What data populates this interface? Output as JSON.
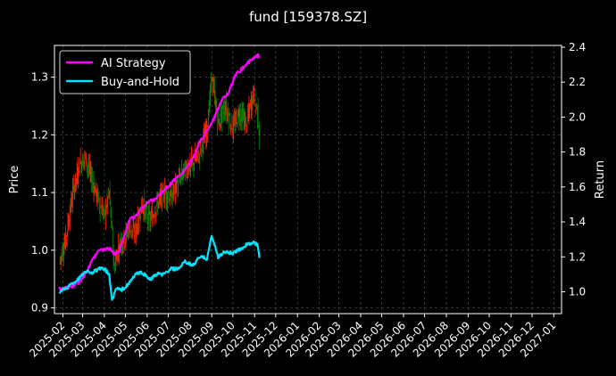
{
  "chart_data": {
    "type": "line",
    "title": "fund [159378.SZ]",
    "ylabel_left": "Price",
    "ylabel_right": "Return",
    "x_ticks": [
      "2025-02",
      "2025-03",
      "2025-04",
      "2025-05",
      "2025-06",
      "2025-07",
      "2025-08",
      "2025-09",
      "2025-10",
      "2025-11",
      "2025-12",
      "2026-01",
      "2026-02",
      "2026-03",
      "2026-04",
      "2026-05",
      "2026-06",
      "2026-07",
      "2026-08",
      "2026-09",
      "2026-10",
      "2026-11",
      "2026-12",
      "2027-01"
    ],
    "xlim": [
      "2025-01-20",
      "2027-01-12"
    ],
    "ylim_left": [
      0.89,
      1.355
    ],
    "ylim_right": [
      0.875,
      2.41
    ],
    "yticks_left": [
      "0.9",
      "1.0",
      "1.1",
      "1.2",
      "1.3"
    ],
    "yticks_right": [
      "1.0",
      "1.2",
      "1.4",
      "1.6",
      "1.8",
      "2.0",
      "2.2",
      "2.4"
    ],
    "grid": true,
    "legend_position": "top-left",
    "colors": {
      "ai_strategy": "#ff00ff",
      "buy_and_hold": "#00e5ff",
      "candle_up": "#ff2a00",
      "candle_down": "#008a00",
      "grid": "#555555",
      "background": "#000000",
      "text": "#ffffff"
    },
    "series": [
      {
        "name": "AI Strategy",
        "axis": "right",
        "dates": [
          "2025-01-27",
          "2025-02-05",
          "2025-02-15",
          "2025-02-25",
          "2025-03-05",
          "2025-03-15",
          "2025-03-25",
          "2025-04-01",
          "2025-04-08",
          "2025-04-15",
          "2025-04-22",
          "2025-04-29",
          "2025-05-06",
          "2025-05-15",
          "2025-05-25",
          "2025-06-05",
          "2025-06-15",
          "2025-06-25",
          "2025-07-05",
          "2025-07-15",
          "2025-07-25",
          "2025-08-05",
          "2025-08-15",
          "2025-08-25",
          "2025-09-05",
          "2025-09-15",
          "2025-09-25",
          "2025-10-05",
          "2025-10-15",
          "2025-10-25",
          "2025-11-05",
          "2025-11-08"
        ],
        "values": [
          1.02,
          1.02,
          1.03,
          1.06,
          1.1,
          1.18,
          1.24,
          1.24,
          1.25,
          1.22,
          1.23,
          1.31,
          1.41,
          1.43,
          1.48,
          1.52,
          1.54,
          1.58,
          1.62,
          1.66,
          1.7,
          1.76,
          1.86,
          1.92,
          2.0,
          2.1,
          2.14,
          2.24,
          2.28,
          2.32,
          2.35,
          2.35
        ]
      },
      {
        "name": "Buy-and-Hold",
        "axis": "right",
        "dates": [
          "2025-01-27",
          "2025-02-05",
          "2025-02-15",
          "2025-02-25",
          "2025-03-05",
          "2025-03-15",
          "2025-03-25",
          "2025-04-01",
          "2025-04-08",
          "2025-04-12",
          "2025-04-18",
          "2025-04-25",
          "2025-05-05",
          "2025-05-15",
          "2025-05-25",
          "2025-06-05",
          "2025-06-15",
          "2025-06-25",
          "2025-07-05",
          "2025-07-15",
          "2025-07-25",
          "2025-08-05",
          "2025-08-15",
          "2025-08-25",
          "2025-09-01",
          "2025-09-10",
          "2025-09-20",
          "2025-10-01",
          "2025-10-10",
          "2025-10-20",
          "2025-10-30",
          "2025-11-05",
          "2025-11-08"
        ],
        "values": [
          1.0,
          1.02,
          1.05,
          1.08,
          1.12,
          1.11,
          1.13,
          1.13,
          1.1,
          0.95,
          1.02,
          1.01,
          1.04,
          1.1,
          1.11,
          1.07,
          1.1,
          1.1,
          1.13,
          1.13,
          1.17,
          1.15,
          1.2,
          1.19,
          1.32,
          1.2,
          1.23,
          1.22,
          1.24,
          1.27,
          1.28,
          1.27,
          1.19
        ]
      },
      {
        "name": "Price",
        "axis": "left",
        "dates": [
          "2025-01-27",
          "2025-02-05",
          "2025-02-15",
          "2025-02-25",
          "2025-03-05",
          "2025-03-15",
          "2025-03-25",
          "2025-04-01",
          "2025-04-08",
          "2025-04-15",
          "2025-04-22",
          "2025-04-29",
          "2025-05-06",
          "2025-05-15",
          "2025-05-25",
          "2025-06-05",
          "2025-06-15",
          "2025-06-25",
          "2025-07-05",
          "2025-07-15",
          "2025-07-25",
          "2025-08-05",
          "2025-08-15",
          "2025-08-25",
          "2025-09-01",
          "2025-09-10",
          "2025-09-20",
          "2025-10-01",
          "2025-10-10",
          "2025-10-20",
          "2025-10-30",
          "2025-11-05",
          "2025-11-08"
        ],
        "values": [
          0.98,
          1.02,
          1.1,
          1.15,
          1.16,
          1.12,
          1.08,
          1.06,
          1.1,
          0.97,
          1.01,
          1.02,
          1.04,
          1.03,
          1.08,
          1.05,
          1.08,
          1.1,
          1.09,
          1.12,
          1.14,
          1.15,
          1.17,
          1.21,
          1.3,
          1.22,
          1.25,
          1.21,
          1.24,
          1.22,
          1.27,
          1.24,
          1.2
        ]
      }
    ]
  }
}
